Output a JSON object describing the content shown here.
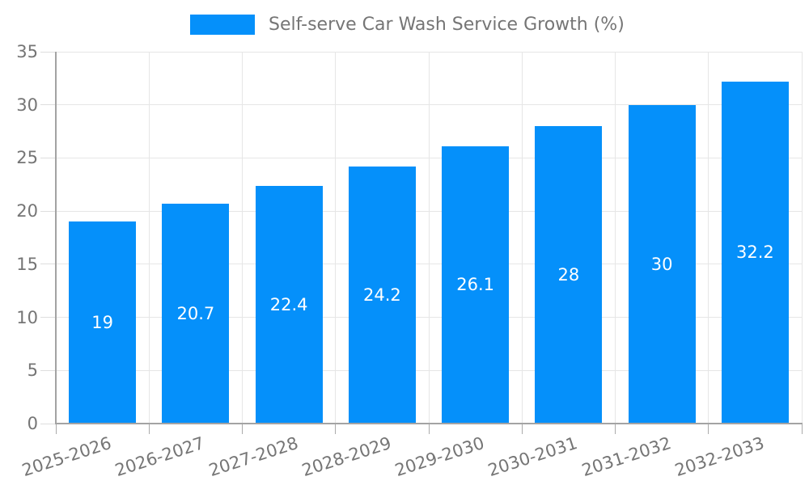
{
  "legend": {
    "label": "Self-serve Car Wash Service Growth (%)"
  },
  "chart_data": {
    "type": "bar",
    "title": "Self-serve Car Wash Service Growth (%)",
    "categories": [
      "2025-2026",
      "2026-2027",
      "2027-2028",
      "2028-2029",
      "2029-2030",
      "2030-2031",
      "2031-2032",
      "2032-2033"
    ],
    "values": [
      19,
      20.7,
      22.4,
      24.2,
      26.1,
      28,
      30,
      32.2
    ],
    "bar_labels": [
      "19",
      "20.7",
      "22.4",
      "24.2",
      "26.1",
      "28",
      "30",
      "32.2"
    ],
    "xlabel": "",
    "ylabel": "",
    "ylim": [
      0,
      35
    ],
    "yticks": [
      0,
      5,
      10,
      15,
      20,
      25,
      30,
      35
    ],
    "grid": true,
    "legend_position": "top-center",
    "colors": {
      "bar": "#0590fa",
      "grid": "#e6e6e6",
      "axis": "#a3a3a3",
      "tick_label": "#757575",
      "bar_label": "#ffffff",
      "background": "#ffffff"
    }
  }
}
